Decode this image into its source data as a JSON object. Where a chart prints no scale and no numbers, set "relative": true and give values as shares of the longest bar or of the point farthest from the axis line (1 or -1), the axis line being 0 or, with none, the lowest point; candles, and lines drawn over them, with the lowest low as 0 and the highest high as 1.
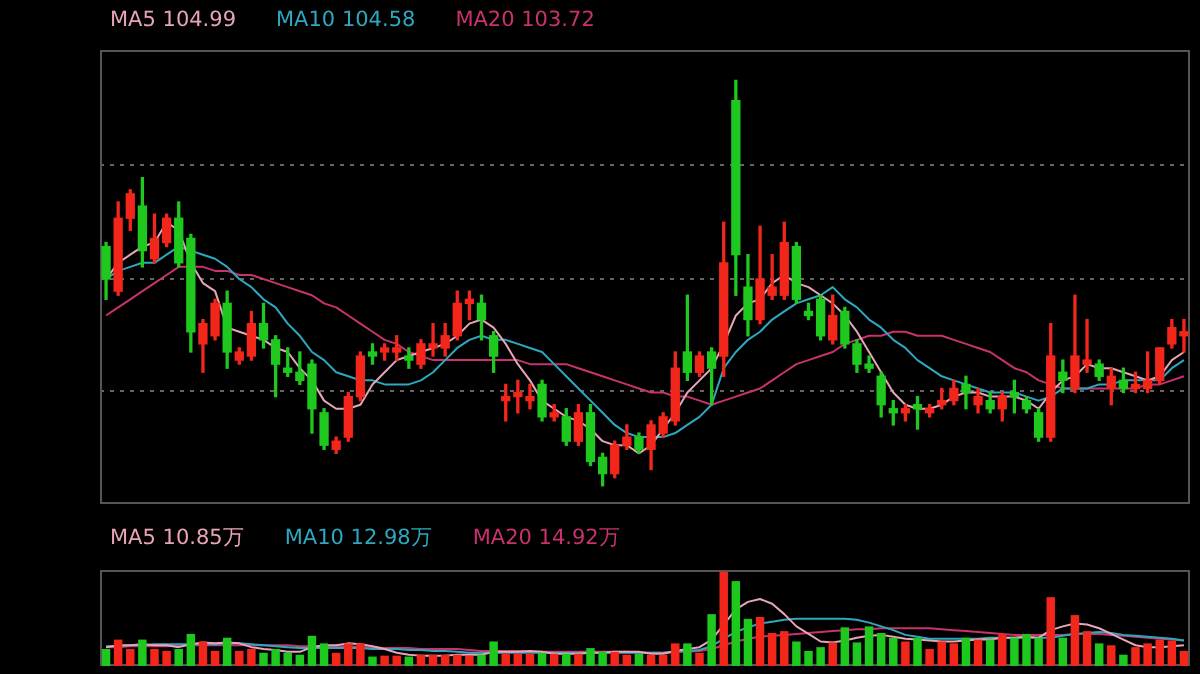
{
  "chart_data": [
    {
      "type": "candlestick",
      "relative": true,
      "grid": "y",
      "legend": "top left",
      "tick_labels": false,
      "categories": [
        null,
        null,
        null,
        null,
        null,
        null,
        null,
        null,
        null,
        null,
        null,
        null,
        null,
        null,
        null,
        null,
        null,
        null,
        null,
        null,
        null,
        null,
        null,
        null,
        null,
        null,
        null,
        null,
        null,
        null,
        null,
        null,
        null,
        null,
        null,
        null,
        null,
        null,
        null,
        null,
        null,
        null,
        null,
        null,
        null,
        null,
        null,
        null,
        null,
        null,
        null,
        null,
        null,
        null,
        null,
        null,
        null,
        null,
        null,
        null,
        null,
        null,
        null,
        null,
        null,
        null,
        null,
        null,
        null,
        null,
        null,
        null,
        null,
        null,
        null,
        null,
        null,
        null,
        null,
        null,
        null,
        null,
        null,
        null,
        null,
        null,
        null,
        null,
        null,
        null
      ],
      "ohlc": [
        [
          0.59,
          0.6,
          0.46,
          0.51
        ],
        [
          0.48,
          0.7,
          0.47,
          0.66
        ],
        [
          0.66,
          0.73,
          0.63,
          0.72
        ],
        [
          0.69,
          0.76,
          0.54,
          0.58
        ],
        [
          0.56,
          0.67,
          0.55,
          0.61
        ],
        [
          0.6,
          0.67,
          0.59,
          0.66
        ],
        [
          0.66,
          0.7,
          0.54,
          0.55
        ],
        [
          0.61,
          0.62,
          0.33,
          0.38
        ],
        [
          0.35,
          0.41,
          0.28,
          0.4
        ],
        [
          0.37,
          0.46,
          0.36,
          0.45
        ],
        [
          0.45,
          0.48,
          0.29,
          0.33
        ],
        [
          0.31,
          0.34,
          0.3,
          0.33
        ],
        [
          0.32,
          0.43,
          0.31,
          0.4
        ],
        [
          0.4,
          0.45,
          0.34,
          0.36
        ],
        [
          0.36,
          0.37,
          0.22,
          0.3
        ],
        [
          0.29,
          0.34,
          0.27,
          0.28
        ],
        [
          0.28,
          0.33,
          0.25,
          0.26
        ],
        [
          0.3,
          0.31,
          0.13,
          0.19
        ],
        [
          0.18,
          0.19,
          0.09,
          0.1
        ],
        [
          0.09,
          0.12,
          0.08,
          0.11
        ],
        [
          0.12,
          0.23,
          0.11,
          0.22
        ],
        [
          0.22,
          0.33,
          0.21,
          0.32
        ],
        [
          0.33,
          0.35,
          0.3,
          0.32
        ],
        [
          0.33,
          0.35,
          0.31,
          0.34
        ],
        [
          0.33,
          0.37,
          0.31,
          0.34
        ],
        [
          0.32,
          0.34,
          0.29,
          0.31
        ],
        [
          0.3,
          0.36,
          0.29,
          0.35
        ],
        [
          0.34,
          0.4,
          0.32,
          0.35
        ],
        [
          0.34,
          0.4,
          0.32,
          0.37
        ],
        [
          0.37,
          0.48,
          0.36,
          0.45
        ],
        [
          0.45,
          0.48,
          0.41,
          0.46
        ],
        [
          0.45,
          0.47,
          0.36,
          0.41
        ],
        [
          0.37,
          0.38,
          0.28,
          0.32
        ],
        [
          0.21,
          0.25,
          0.16,
          0.22
        ],
        [
          0.22,
          0.26,
          0.18,
          0.23
        ],
        [
          0.21,
          0.25,
          0.19,
          0.22
        ],
        [
          0.25,
          0.26,
          0.16,
          0.17
        ],
        [
          0.17,
          0.2,
          0.16,
          0.18
        ],
        [
          0.17,
          0.19,
          0.1,
          0.11
        ],
        [
          0.11,
          0.2,
          0.1,
          0.18
        ],
        [
          0.18,
          0.2,
          0.05,
          0.06
        ],
        [
          0.07,
          0.08,
          0,
          0.03
        ],
        [
          0.03,
          0.11,
          0.02,
          0.1
        ],
        [
          0.1,
          0.15,
          0.09,
          0.12
        ],
        [
          0.12,
          0.13,
          0.08,
          0.09
        ],
        [
          0.09,
          0.16,
          0.04,
          0.15
        ],
        [
          0.13,
          0.18,
          0.12,
          0.17
        ],
        [
          0.16,
          0.33,
          0.15,
          0.29
        ],
        [
          0.33,
          0.47,
          0.26,
          0.28
        ],
        [
          0.28,
          0.33,
          0.27,
          0.32
        ],
        [
          0.33,
          0.34,
          0.2,
          0.29
        ],
        [
          0.32,
          0.65,
          0.27,
          0.55
        ],
        [
          0.95,
          1,
          0.47,
          0.57
        ],
        [
          0.49,
          0.57,
          0.37,
          0.41
        ],
        [
          0.41,
          0.64,
          0.4,
          0.51
        ],
        [
          0.47,
          0.57,
          0.46,
          0.49
        ],
        [
          0.47,
          0.65,
          0.46,
          0.6
        ],
        [
          0.59,
          0.6,
          0.45,
          0.46
        ],
        [
          0.43,
          0.45,
          0.41,
          0.42
        ],
        [
          0.46,
          0.47,
          0.36,
          0.37
        ],
        [
          0.36,
          0.47,
          0.35,
          0.42
        ],
        [
          0.43,
          0.44,
          0.34,
          0.35
        ],
        [
          0.35,
          0.36,
          0.28,
          0.3
        ],
        [
          0.3,
          0.32,
          0.28,
          0.29
        ],
        [
          0.27,
          0.28,
          0.17,
          0.2
        ],
        [
          0.19,
          0.21,
          0.15,
          0.18
        ],
        [
          0.18,
          0.2,
          0.16,
          0.19
        ],
        [
          0.2,
          0.22,
          0.14,
          0.19
        ],
        [
          0.18,
          0.2,
          0.17,
          0.19
        ],
        [
          0.2,
          0.24,
          0.19,
          0.21
        ],
        [
          0.21,
          0.26,
          0.2,
          0.24
        ],
        [
          0.25,
          0.27,
          0.19,
          0.23
        ],
        [
          0.2,
          0.24,
          0.18,
          0.22
        ],
        [
          0.21,
          0.23,
          0.18,
          0.19
        ],
        [
          0.19,
          0.23,
          0.16,
          0.22
        ],
        [
          0.23,
          0.26,
          0.18,
          0.22
        ],
        [
          0.21,
          0.22,
          0.18,
          0.19
        ],
        [
          0.18,
          0.19,
          0.11,
          0.12
        ],
        [
          0.12,
          0.4,
          0.11,
          0.32
        ],
        [
          0.28,
          0.31,
          0.23,
          0.26
        ],
        [
          0.24,
          0.47,
          0.23,
          0.32
        ],
        [
          0.3,
          0.41,
          0.28,
          0.31
        ],
        [
          0.3,
          0.31,
          0.26,
          0.27
        ],
        [
          0.24,
          0.29,
          0.2,
          0.27
        ],
        [
          0.26,
          0.29,
          0.23,
          0.24
        ],
        [
          0.24,
          0.28,
          0.23,
          0.25
        ],
        [
          0.24,
          0.33,
          0.23,
          0.26
        ],
        [
          0.26,
          0.34,
          0.25,
          0.34
        ],
        [
          0.35,
          0.41,
          0.34,
          0.39
        ],
        [
          0.37,
          0.41,
          0.33,
          0.38
        ]
      ],
      "colors": [
        "#1ec81e",
        "#f2261a",
        "#f2261a",
        "#1ec81e",
        "#f2261a",
        "#f2261a",
        "#1ec81e",
        "#1ec81e",
        "#f2261a",
        "#f2261a",
        "#1ec81e",
        "#f2261a",
        "#f2261a",
        "#1ec81e",
        "#1ec81e",
        "#1ec81e",
        "#1ec81e",
        "#1ec81e",
        "#1ec81e",
        "#f2261a",
        "#f2261a",
        "#f2261a",
        "#1ec81e",
        "#f2261a",
        "#f2261a",
        "#1ec81e",
        "#f2261a",
        "#f2261a",
        "#f2261a",
        "#f2261a",
        "#f2261a",
        "#1ec81e",
        "#1ec81e",
        "#f2261a",
        "#f2261a",
        "#f2261a",
        "#1ec81e",
        "#f2261a",
        "#1ec81e",
        "#f2261a",
        "#1ec81e",
        "#1ec81e",
        "#f2261a",
        "#f2261a",
        "#1ec81e",
        "#f2261a",
        "#f2261a",
        "#f2261a",
        "#1ec81e",
        "#f2261a",
        "#1ec81e",
        "#f2261a",
        "#1ec81e",
        "#1ec81e",
        "#f2261a",
        "#f2261a",
        "#f2261a",
        "#1ec81e",
        "#1ec81e",
        "#1ec81e",
        "#f2261a",
        "#1ec81e",
        "#1ec81e",
        "#1ec81e",
        "#1ec81e",
        "#1ec81e",
        "#f2261a",
        "#1ec81e",
        "#f2261a",
        "#f2261a",
        "#f2261a",
        "#1ec81e",
        "#f2261a",
        "#1ec81e",
        "#f2261a",
        "#1ec81e",
        "#1ec81e",
        "#1ec81e",
        "#f2261a",
        "#1ec81e",
        "#f2261a",
        "#f2261a",
        "#1ec81e",
        "#f2261a",
        "#1ec81e",
        "#f2261a",
        "#f2261a",
        "#f2261a",
        "#f2261a",
        "#f2261a"
      ],
      "series": [
        {
          "type": "line",
          "name": "MA5 104.99",
          "color": "#e8a5b5",
          "values": [
            0.51,
            0.55,
            0.57,
            0.59,
            0.6,
            0.65,
            0.63,
            0.55,
            0.5,
            0.48,
            0.39,
            0.38,
            0.37,
            0.36,
            0.34,
            0.33,
            0.29,
            0.26,
            0.21,
            0.19,
            0.19,
            0.2,
            0.25,
            0.28,
            0.31,
            0.32,
            0.33,
            0.34,
            0.35,
            0.37,
            0.4,
            0.41,
            0.39,
            0.35,
            0.3,
            0.26,
            0.21,
            0.19,
            0.17,
            0.16,
            0.14,
            0.11,
            0.1,
            0.1,
            0.08,
            0.1,
            0.14,
            0.18,
            0.23,
            0.26,
            0.29,
            0.35,
            0.42,
            0.45,
            0.46,
            0.5,
            0.52,
            0.5,
            0.49,
            0.47,
            0.45,
            0.42,
            0.38,
            0.33,
            0.28,
            0.23,
            0.2,
            0.19,
            0.19,
            0.2,
            0.22,
            0.23,
            0.23,
            0.22,
            0.22,
            0.22,
            0.21,
            0.19,
            0.23,
            0.26,
            0.27,
            0.3,
            0.29,
            0.29,
            0.28,
            0.27,
            0.26,
            0.27,
            0.31,
            0.33
          ]
        },
        {
          "type": "line",
          "name": "MA10 104.58",
          "color": "#2ea8c0",
          "values": [
            0.51,
            0.53,
            0.54,
            0.55,
            0.55,
            0.57,
            0.59,
            0.58,
            0.57,
            0.56,
            0.54,
            0.51,
            0.49,
            0.46,
            0.44,
            0.4,
            0.37,
            0.33,
            0.31,
            0.28,
            0.27,
            0.26,
            0.26,
            0.25,
            0.25,
            0.25,
            0.26,
            0.28,
            0.31,
            0.34,
            0.36,
            0.37,
            0.36,
            0.36,
            0.35,
            0.34,
            0.33,
            0.3,
            0.27,
            0.24,
            0.21,
            0.18,
            0.15,
            0.13,
            0.12,
            0.12,
            0.12,
            0.13,
            0.15,
            0.17,
            0.2,
            0.29,
            0.33,
            0.36,
            0.38,
            0.41,
            0.43,
            0.45,
            0.46,
            0.47,
            0.49,
            0.46,
            0.44,
            0.41,
            0.39,
            0.36,
            0.34,
            0.31,
            0.29,
            0.27,
            0.26,
            0.25,
            0.24,
            0.23,
            0.23,
            0.23,
            0.22,
            0.21,
            0.22,
            0.24,
            0.24,
            0.24,
            0.25,
            0.25,
            0.26,
            0.26,
            0.26,
            0.26,
            0.29,
            0.31
          ]
        },
        {
          "type": "line",
          "name": "MA20 103.72",
          "color": "#c8326e",
          "values": [
            0.42,
            0.44,
            0.46,
            0.48,
            0.5,
            0.52,
            0.54,
            0.54,
            0.54,
            0.53,
            0.53,
            0.52,
            0.52,
            0.51,
            0.5,
            0.49,
            0.48,
            0.47,
            0.45,
            0.44,
            0.42,
            0.4,
            0.38,
            0.36,
            0.35,
            0.33,
            0.32,
            0.31,
            0.31,
            0.31,
            0.31,
            0.31,
            0.31,
            0.31,
            0.31,
            0.3,
            0.3,
            0.3,
            0.3,
            0.29,
            0.28,
            0.27,
            0.26,
            0.25,
            0.24,
            0.23,
            0.23,
            0.22,
            0.22,
            0.21,
            0.2,
            0.21,
            0.22,
            0.23,
            0.24,
            0.26,
            0.28,
            0.3,
            0.31,
            0.32,
            0.33,
            0.35,
            0.36,
            0.37,
            0.37,
            0.38,
            0.38,
            0.37,
            0.37,
            0.37,
            0.36,
            0.35,
            0.34,
            0.33,
            0.31,
            0.29,
            0.28,
            0.26,
            0.25,
            0.24,
            0.24,
            0.24,
            0.24,
            0.24,
            0.24,
            0.24,
            0.25,
            0.25,
            0.26,
            0.27
          ]
        }
      ]
    },
    {
      "type": "bar",
      "relative": true,
      "legend": "top left",
      "tick_labels": false,
      "categories": [
        null,
        null,
        null,
        null,
        null,
        null,
        null,
        null,
        null,
        null,
        null,
        null,
        null,
        null,
        null,
        null,
        null,
        null,
        null,
        null,
        null,
        null,
        null,
        null,
        null,
        null,
        null,
        null,
        null,
        null,
        null,
        null,
        null,
        null,
        null,
        null,
        null,
        null,
        null,
        null,
        null,
        null,
        null,
        null,
        null,
        null,
        null,
        null,
        null,
        null,
        null,
        null,
        null,
        null,
        null,
        null,
        null,
        null,
        null,
        null,
        null,
        null,
        null,
        null,
        null,
        null,
        null,
        null,
        null,
        null,
        null,
        null,
        null,
        null,
        null,
        null,
        null,
        null,
        null,
        null,
        null,
        null,
        null,
        null,
        null,
        null,
        null,
        null,
        null,
        null
      ],
      "series": [
        {
          "type": "bar",
          "colors": [
            "#1ec81e",
            "#f2261a",
            "#f2261a",
            "#1ec81e",
            "#f2261a",
            "#f2261a",
            "#1ec81e",
            "#1ec81e",
            "#f2261a",
            "#f2261a",
            "#1ec81e",
            "#f2261a",
            "#f2261a",
            "#1ec81e",
            "#1ec81e",
            "#1ec81e",
            "#1ec81e",
            "#1ec81e",
            "#1ec81e",
            "#f2261a",
            "#f2261a",
            "#f2261a",
            "#1ec81e",
            "#f2261a",
            "#f2261a",
            "#1ec81e",
            "#f2261a",
            "#f2261a",
            "#f2261a",
            "#f2261a",
            "#f2261a",
            "#1ec81e",
            "#1ec81e",
            "#f2261a",
            "#f2261a",
            "#f2261a",
            "#1ec81e",
            "#f2261a",
            "#1ec81e",
            "#f2261a",
            "#1ec81e",
            "#1ec81e",
            "#f2261a",
            "#f2261a",
            "#1ec81e",
            "#f2261a",
            "#f2261a",
            "#f2261a",
            "#1ec81e",
            "#f2261a",
            "#1ec81e",
            "#f2261a",
            "#1ec81e",
            "#1ec81e",
            "#f2261a",
            "#f2261a",
            "#f2261a",
            "#1ec81e",
            "#1ec81e",
            "#1ec81e",
            "#f2261a",
            "#1ec81e",
            "#1ec81e",
            "#1ec81e",
            "#1ec81e",
            "#1ec81e",
            "#f2261a",
            "#1ec81e",
            "#f2261a",
            "#f2261a",
            "#f2261a",
            "#1ec81e",
            "#f2261a",
            "#1ec81e",
            "#f2261a",
            "#1ec81e",
            "#1ec81e",
            "#1ec81e",
            "#f2261a",
            "#1ec81e",
            "#f2261a",
            "#f2261a",
            "#1ec81e",
            "#f2261a",
            "#1ec81e",
            "#f2261a",
            "#f2261a",
            "#f2261a",
            "#f2261a",
            "#f2261a"
          ],
          "values": [
            0.18,
            0.28,
            0.18,
            0.28,
            0.18,
            0.16,
            0.18,
            0.34,
            0.26,
            0.16,
            0.3,
            0.16,
            0.18,
            0.14,
            0.18,
            0.14,
            0.12,
            0.32,
            0.24,
            0.14,
            0.24,
            0.24,
            0.1,
            0.11,
            0.11,
            0.1,
            0.12,
            0.12,
            0.12,
            0.12,
            0.11,
            0.12,
            0.26,
            0.13,
            0.13,
            0.13,
            0.14,
            0.13,
            0.13,
            0.13,
            0.19,
            0.15,
            0.15,
            0.12,
            0.13,
            0.12,
            0.12,
            0.24,
            0.24,
            0.14,
            0.55,
            1,
            0.9,
            0.5,
            0.52,
            0.35,
            0.37,
            0.26,
            0.16,
            0.2,
            0.25,
            0.41,
            0.25,
            0.42,
            0.35,
            0.3,
            0.26,
            0.3,
            0.18,
            0.26,
            0.24,
            0.3,
            0.28,
            0.28,
            0.34,
            0.3,
            0.34,
            0.3,
            0.73,
            0.3,
            0.54,
            0.37,
            0.24,
            0.22,
            0.12,
            0.2,
            0.24,
            0.28,
            0.27,
            0.16
          ]
        },
        {
          "type": "line",
          "name": "MA5 10.85万",
          "color": "#e8a5b5",
          "values": [
            0.2,
            0.22,
            0.22,
            0.23,
            0.22,
            0.22,
            0.2,
            0.23,
            0.25,
            0.24,
            0.25,
            0.24,
            0.2,
            0.18,
            0.17,
            0.15,
            0.15,
            0.2,
            0.22,
            0.22,
            0.24,
            0.23,
            0.21,
            0.18,
            0.14,
            0.12,
            0.11,
            0.11,
            0.11,
            0.12,
            0.12,
            0.12,
            0.15,
            0.15,
            0.15,
            0.16,
            0.15,
            0.13,
            0.13,
            0.13,
            0.14,
            0.14,
            0.15,
            0.15,
            0.15,
            0.13,
            0.13,
            0.16,
            0.18,
            0.2,
            0.28,
            0.44,
            0.6,
            0.68,
            0.71,
            0.66,
            0.55,
            0.42,
            0.34,
            0.26,
            0.25,
            0.27,
            0.3,
            0.32,
            0.33,
            0.31,
            0.29,
            0.28,
            0.27,
            0.26,
            0.26,
            0.27,
            0.28,
            0.28,
            0.3,
            0.3,
            0.31,
            0.3,
            0.38,
            0.42,
            0.45,
            0.44,
            0.4,
            0.34,
            0.28,
            0.22,
            0.2,
            0.2,
            0.21,
            0.22
          ]
        },
        {
          "type": "line",
          "name": "MA10 12.98万",
          "color": "#2ea8c0",
          "values": [
            0.21,
            0.21,
            0.22,
            0.22,
            0.23,
            0.23,
            0.23,
            0.23,
            0.23,
            0.23,
            0.24,
            0.24,
            0.23,
            0.22,
            0.21,
            0.2,
            0.19,
            0.19,
            0.19,
            0.19,
            0.19,
            0.19,
            0.18,
            0.18,
            0.18,
            0.17,
            0.17,
            0.16,
            0.16,
            0.15,
            0.14,
            0.14,
            0.14,
            0.14,
            0.14,
            0.14,
            0.14,
            0.14,
            0.14,
            0.14,
            0.14,
            0.14,
            0.14,
            0.14,
            0.14,
            0.14,
            0.14,
            0.15,
            0.16,
            0.17,
            0.21,
            0.29,
            0.36,
            0.41,
            0.45,
            0.47,
            0.49,
            0.5,
            0.5,
            0.5,
            0.5,
            0.5,
            0.49,
            0.46,
            0.42,
            0.38,
            0.33,
            0.31,
            0.29,
            0.29,
            0.29,
            0.29,
            0.29,
            0.3,
            0.3,
            0.3,
            0.3,
            0.3,
            0.3,
            0.32,
            0.34,
            0.35,
            0.36,
            0.35,
            0.33,
            0.32,
            0.31,
            0.3,
            0.29,
            0.27
          ]
        },
        {
          "type": "line",
          "name": "MA20 14.92万",
          "color": "#c8326e",
          "values": [
            0.2,
            0.2,
            0.21,
            0.21,
            0.21,
            0.21,
            0.22,
            0.22,
            0.22,
            0.22,
            0.22,
            0.22,
            0.22,
            0.22,
            0.22,
            0.22,
            0.21,
            0.21,
            0.21,
            0.21,
            0.21,
            0.2,
            0.2,
            0.19,
            0.19,
            0.19,
            0.18,
            0.18,
            0.18,
            0.18,
            0.17,
            0.16,
            0.16,
            0.16,
            0.16,
            0.15,
            0.15,
            0.15,
            0.15,
            0.15,
            0.15,
            0.15,
            0.15,
            0.15,
            0.14,
            0.14,
            0.14,
            0.15,
            0.15,
            0.16,
            0.18,
            0.22,
            0.26,
            0.29,
            0.31,
            0.32,
            0.33,
            0.34,
            0.35,
            0.36,
            0.37,
            0.38,
            0.39,
            0.39,
            0.4,
            0.4,
            0.4,
            0.4,
            0.4,
            0.39,
            0.38,
            0.37,
            0.36,
            0.35,
            0.34,
            0.33,
            0.33,
            0.33,
            0.33,
            0.33,
            0.34,
            0.34,
            0.34,
            0.33,
            0.32,
            0.31,
            0.3,
            0.29,
            0.28,
            0.27
          ]
        }
      ]
    }
  ]
}
